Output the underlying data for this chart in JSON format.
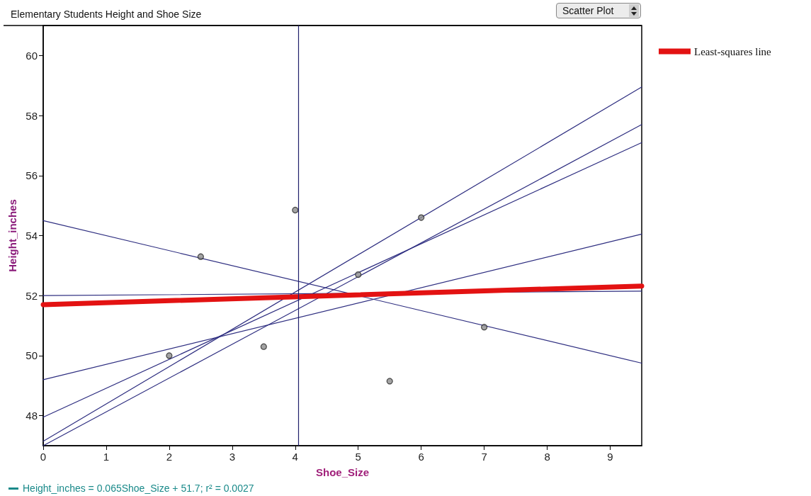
{
  "chart_data": {
    "type": "scatter",
    "title": "Elementary Students Height and Shoe Size",
    "xlabel": "Shoe_Size",
    "ylabel": "Height_inches",
    "annotations": [
      "Scatter Plot",
      "Height_inches = 0.065Shoe_Size + 51.7; r² = 0.0027"
    ],
    "xlim": [
      0,
      9.5
    ],
    "xticks": [
      0,
      1,
      2,
      3,
      4,
      5,
      6,
      7,
      8,
      9
    ],
    "ylim": [
      47,
      61
    ],
    "yticks": [
      48,
      50,
      52,
      54,
      56,
      58,
      60
    ],
    "grid": false,
    "legend": "top right",
    "marker": "circle",
    "ref_lines": [
      {
        "axis": "x",
        "value": 4.05,
        "color": "#1f1f6b"
      }
    ],
    "series": [
      {
        "type": "line",
        "color": "#2e2e80",
        "marker": "none",
        "x": [
          0,
          9.5
        ],
        "values": [
          54.5,
          49.75
        ]
      },
      {
        "type": "line",
        "color": "#2e2e80",
        "marker": "none",
        "x": [
          0,
          9.5
        ],
        "values": [
          52,
          52.15
        ]
      },
      {
        "type": "line",
        "color": "#2e2e80",
        "marker": "none",
        "x": [
          0,
          9.5
        ],
        "values": [
          49.2,
          54.05
        ]
      },
      {
        "type": "line",
        "color": "#2e2e80",
        "marker": "none",
        "x": [
          0,
          9.5
        ],
        "values": [
          47.15,
          58.95
        ]
      },
      {
        "type": "line",
        "color": "#2e2e80",
        "marker": "none",
        "x": [
          0,
          9.5
        ],
        "values": [
          47.95,
          57.1
        ]
      },
      {
        "type": "line",
        "color": "#2e2e80",
        "marker": "none",
        "x": [
          0,
          9.5
        ],
        "values": [
          47,
          57.7
        ]
      },
      {
        "type": "line",
        "name": "Least-squares line",
        "color": "#e31212",
        "marker": "none",
        "x": [
          0,
          9.5
        ],
        "values": [
          51.7,
          52.32
        ]
      },
      {
        "color": "#8c8c8c",
        "x": [
          2.5,
          4,
          6,
          5,
          2,
          3.5,
          5.5,
          7
        ],
        "values": [
          53.3,
          54.85,
          54.6,
          52.7,
          50,
          50.3,
          49.15,
          50.95
        ]
      }
    ]
  }
}
